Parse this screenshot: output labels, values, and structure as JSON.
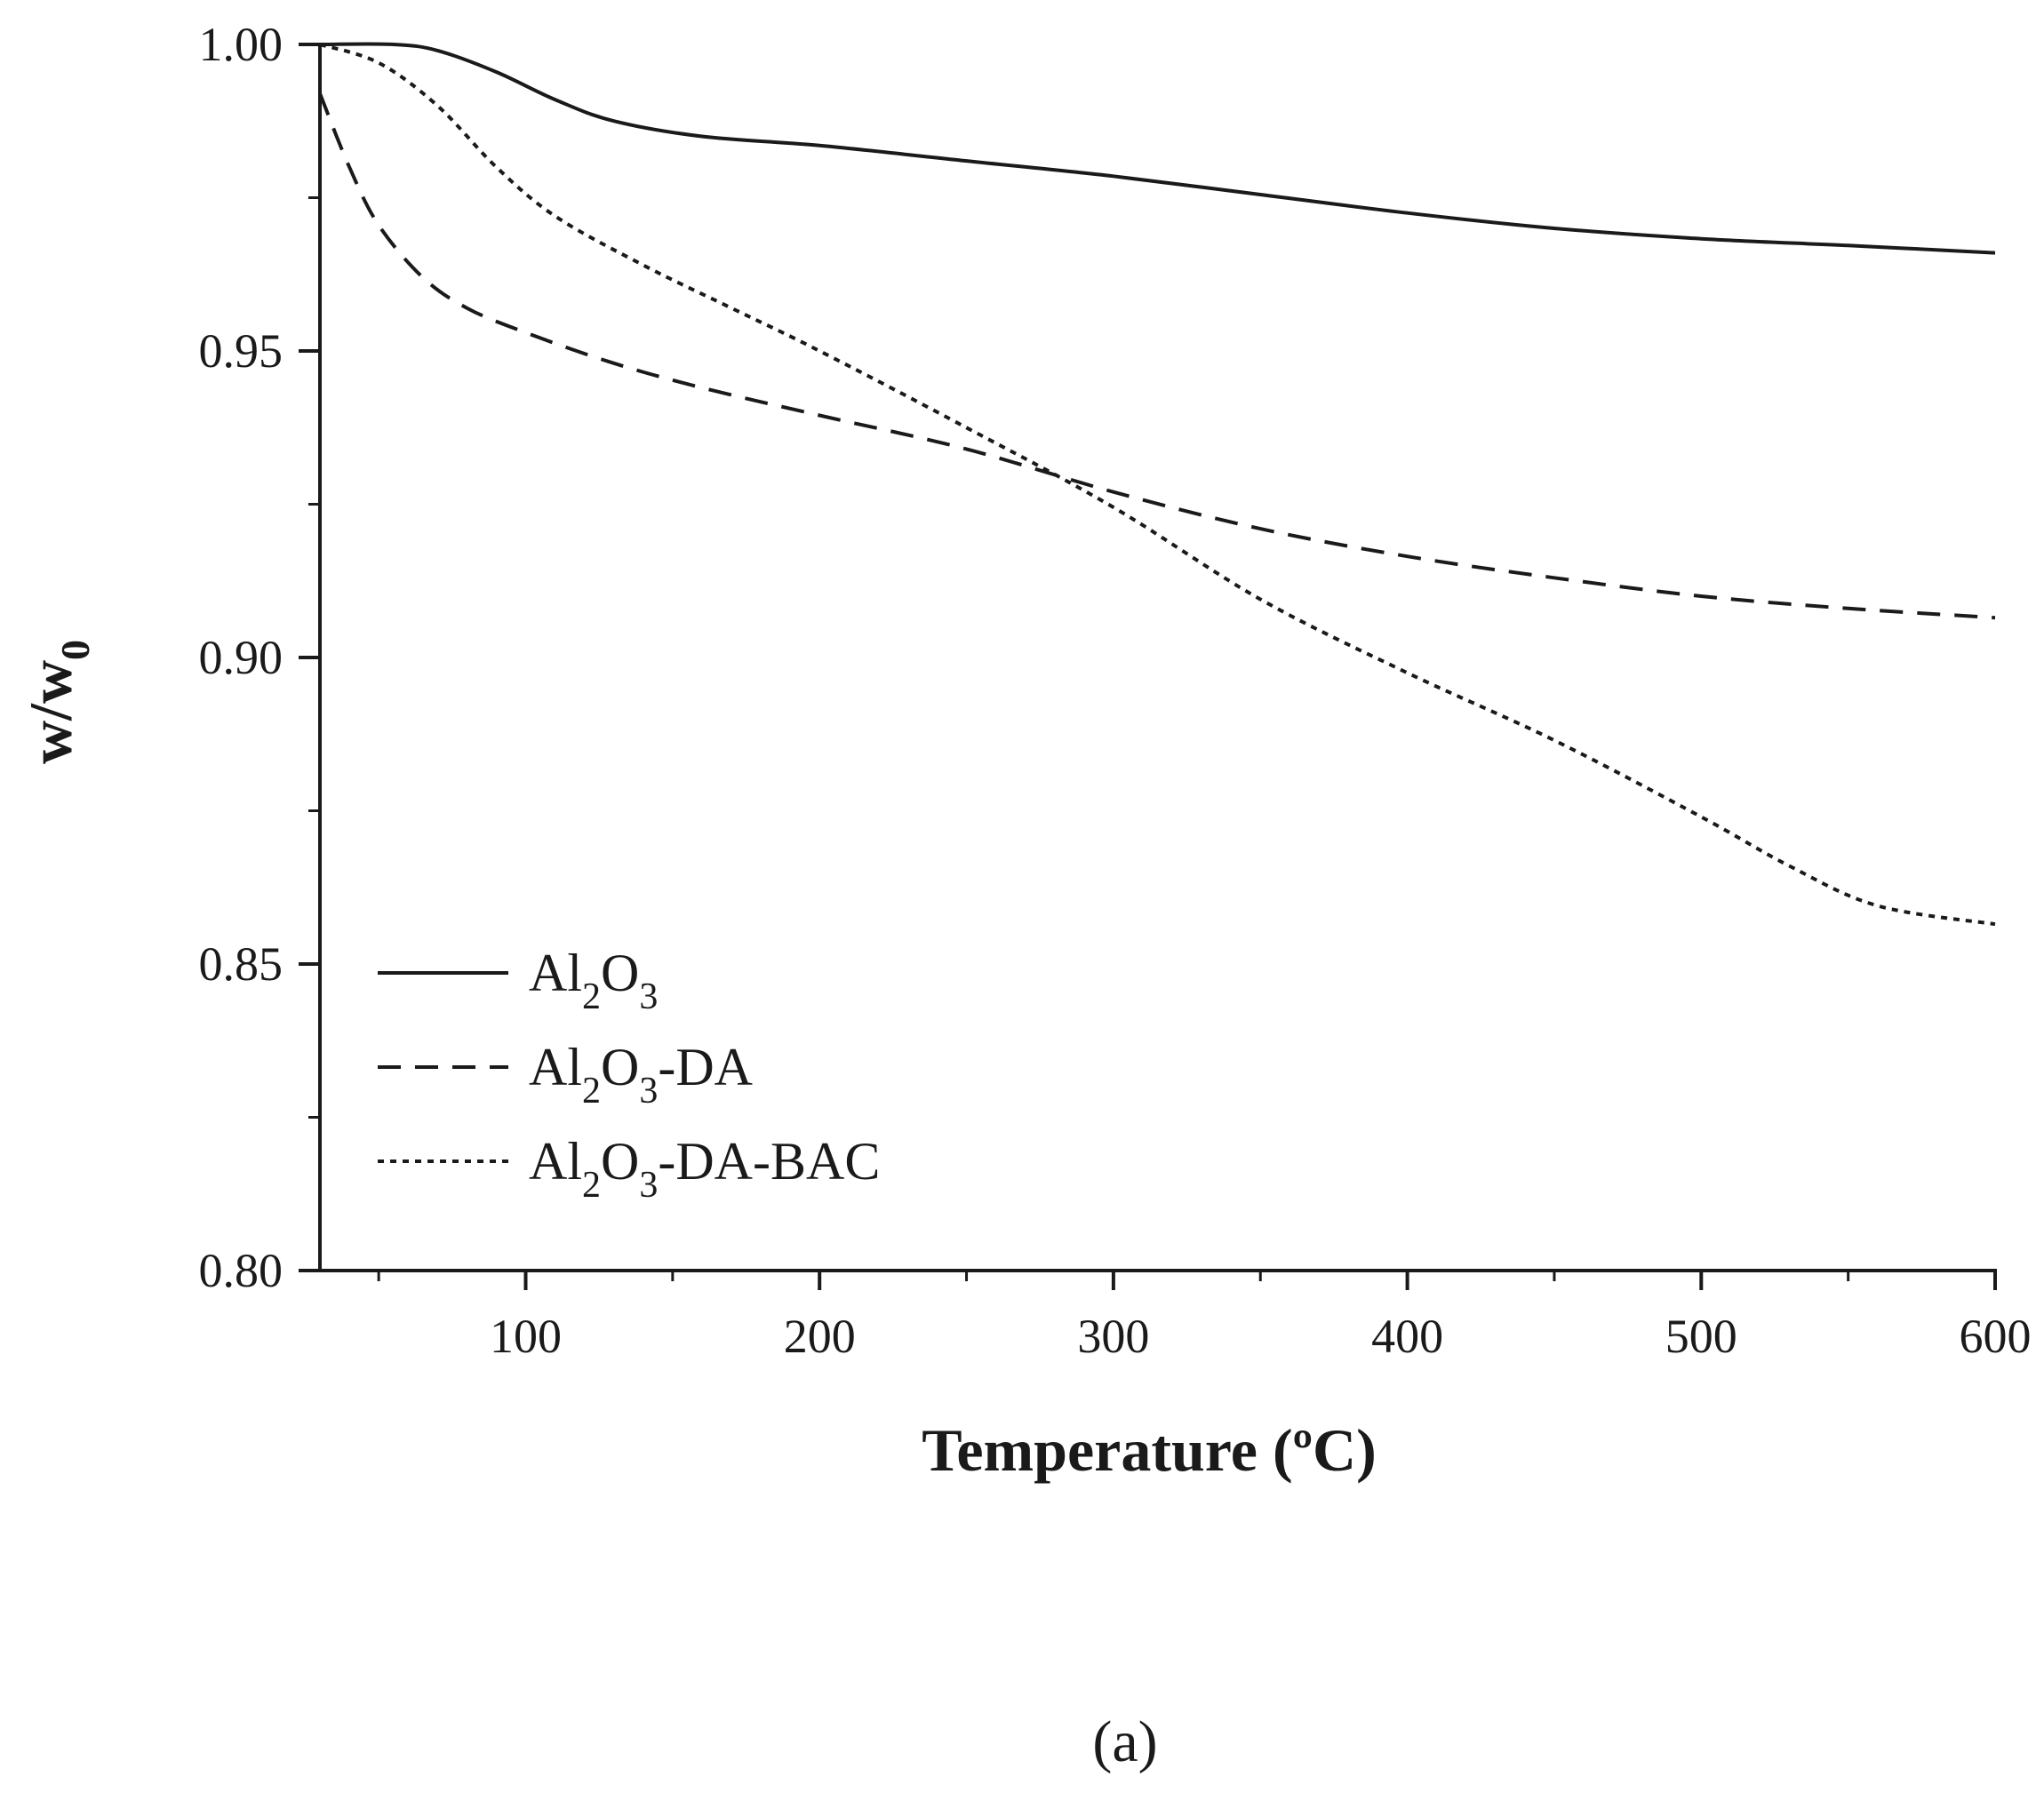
{
  "chart_data": {
    "type": "line",
    "xlabel": "Temperature (ºC)",
    "ylabel": "w/w",
    "ylabel_sub": "0",
    "xlim": [
      30,
      600
    ],
    "ylim": [
      0.8,
      1.0
    ],
    "x_ticks": [
      100,
      200,
      300,
      400,
      500,
      600
    ],
    "x_minor_ticks": [
      50,
      150,
      250,
      350,
      450,
      550
    ],
    "y_ticks": [
      0.8,
      0.85,
      0.9,
      0.95,
      1.0
    ],
    "y_tick_labels": [
      "0.80",
      "0.85",
      "0.90",
      "0.95",
      "1.00"
    ],
    "y_minor_ticks": [
      0.825,
      0.875,
      0.925,
      0.975
    ],
    "legend_position": "lower-left",
    "caption": "(a)",
    "series": [
      {
        "name": "Al2O3",
        "label_parts": [
          [
            "Al",
            ""
          ],
          [
            "2",
            "sub"
          ],
          [
            "O",
            ""
          ],
          [
            "3",
            "sub"
          ]
        ],
        "style": "solid",
        "x": [
          30,
          55,
          70,
          90,
          110,
          130,
          160,
          200,
          250,
          300,
          350,
          400,
          450,
          500,
          550,
          600
        ],
        "y": [
          1.0,
          1.0,
          0.999,
          0.9955,
          0.991,
          0.9875,
          0.985,
          0.9835,
          0.981,
          0.9785,
          0.9755,
          0.9725,
          0.97,
          0.9683,
          0.9672,
          0.966
        ]
      },
      {
        "name": "Al2O3-DA",
        "label_parts": [
          [
            "Al",
            ""
          ],
          [
            "2",
            "sub"
          ],
          [
            "O",
            ""
          ],
          [
            "3",
            "sub"
          ],
          [
            "-DA",
            ""
          ]
        ],
        "style": "dashed",
        "x": [
          30,
          40,
          50,
          65,
          80,
          100,
          130,
          160,
          200,
          250,
          300,
          350,
          400,
          450,
          500,
          550,
          600
        ],
        "y": [
          0.992,
          0.98,
          0.9705,
          0.962,
          0.957,
          0.953,
          0.948,
          0.944,
          0.9395,
          0.934,
          0.927,
          0.921,
          0.9165,
          0.913,
          0.91,
          0.908,
          0.9065
        ]
      },
      {
        "name": "Al2O3-DA-BAC",
        "label_parts": [
          [
            "Al",
            ""
          ],
          [
            "2",
            "sub"
          ],
          [
            "O",
            ""
          ],
          [
            "3",
            "sub"
          ],
          [
            "-DA-BAC",
            ""
          ]
        ],
        "style": "dotted",
        "x": [
          30,
          50,
          70,
          90,
          110,
          140,
          170,
          200,
          250,
          300,
          350,
          400,
          450,
          500,
          530,
          560,
          600
        ],
        "y": [
          1.0,
          0.997,
          0.99,
          0.98,
          0.972,
          0.964,
          0.957,
          0.95,
          0.9375,
          0.9245,
          0.9095,
          0.8975,
          0.8865,
          0.874,
          0.866,
          0.8595,
          0.8565
        ]
      }
    ]
  }
}
